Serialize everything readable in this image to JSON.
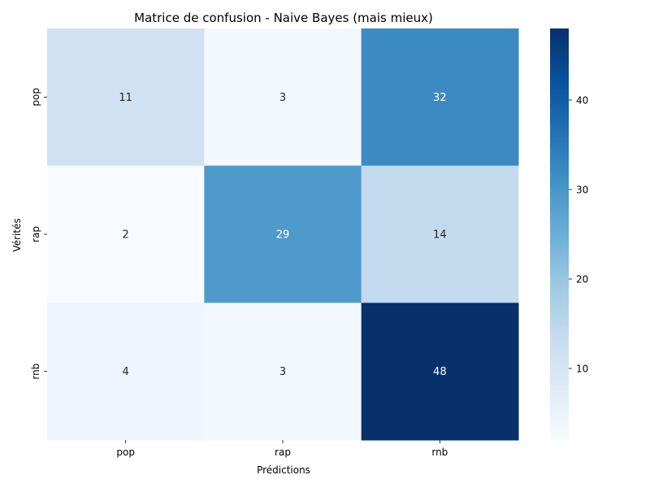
{
  "chart_data": {
    "type": "heatmap",
    "title": "Matrice de confusion - Naive Bayes (mais mieux)",
    "xlabel": "Prédictions",
    "ylabel": "Vérités",
    "x_categories": [
      "pop",
      "rap",
      "rnb"
    ],
    "y_categories": [
      "pop",
      "rap",
      "rnb"
    ],
    "values": [
      [
        11,
        3,
        32
      ],
      [
        2,
        29,
        14
      ],
      [
        4,
        3,
        48
      ]
    ],
    "colormap": "Blues",
    "color_range": [
      2,
      48
    ],
    "colorbar_ticks": [
      10,
      20,
      30,
      40
    ],
    "annotation_text_colors": {
      "light_cells": "#262626",
      "dark_cells": "#ffffff"
    }
  }
}
